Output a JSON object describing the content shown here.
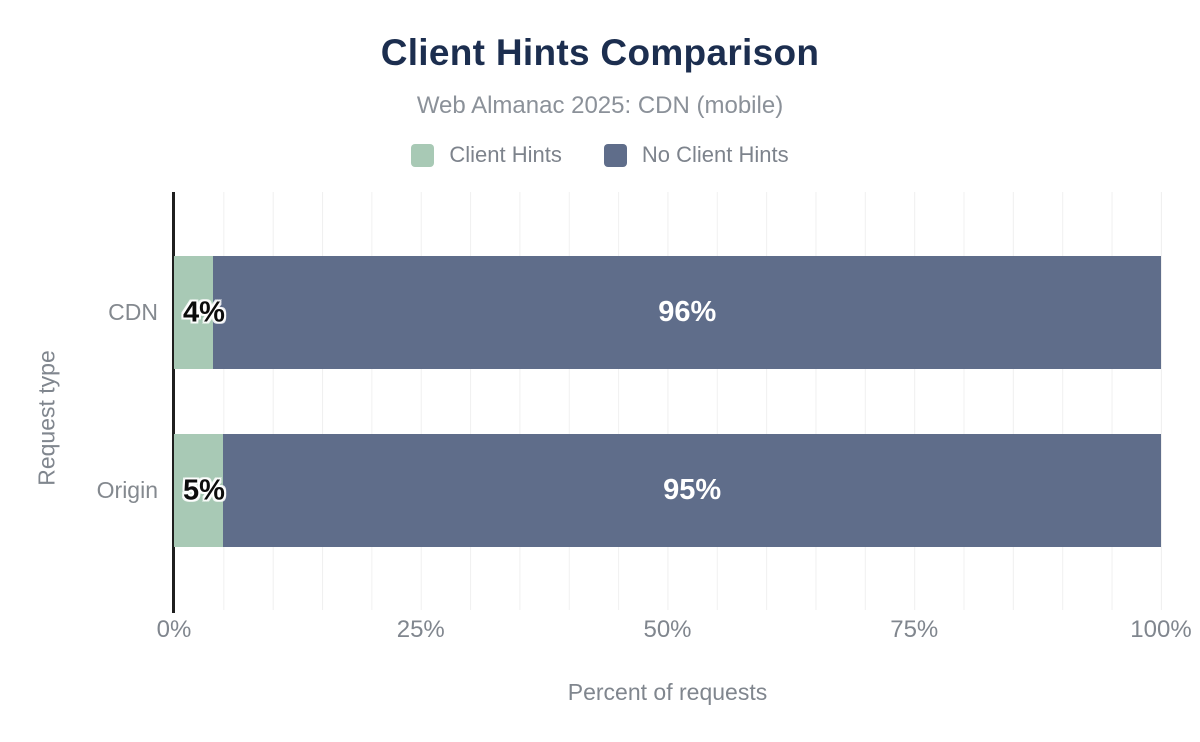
{
  "header": {
    "title": "Client Hints Comparison",
    "subtitle": "Web Almanac 2025: CDN (mobile)"
  },
  "legend": {
    "items": [
      {
        "label": "Client Hints",
        "color": "#a8c9b5"
      },
      {
        "label": "No Client Hints",
        "color": "#5f6d8a"
      }
    ]
  },
  "axes": {
    "x_label": "Percent of requests",
    "y_label": "Request type",
    "x_ticks": [
      "0%",
      "25%",
      "50%",
      "75%",
      "100%"
    ]
  },
  "chart_data": {
    "type": "bar",
    "orientation": "horizontal",
    "stacked": true,
    "title": "Client Hints Comparison",
    "subtitle": "Web Almanac 2025: CDN (mobile)",
    "xlabel": "Percent of requests",
    "ylabel": "Request type",
    "xlim": [
      0,
      100
    ],
    "x_tick_step": 25,
    "grid_step": 5,
    "grid": true,
    "legend_position": "top",
    "categories": [
      "CDN",
      "Origin"
    ],
    "series": [
      {
        "name": "Client Hints",
        "color": "#a8c9b5",
        "values": [
          4,
          5
        ]
      },
      {
        "name": "No Client Hints",
        "color": "#5f6d8a",
        "values": [
          96,
          95
        ]
      }
    ],
    "bar_labels": [
      [
        "4%",
        "96%"
      ],
      [
        "5%",
        "95%"
      ]
    ],
    "colors": {
      "title": "#1c2e4f",
      "subtitle": "#8b9199",
      "axis_text": "#80868e",
      "gridline": "#f0f0f0",
      "axis_line": "#1f1f1f",
      "label_on_light": "#0c0c0c",
      "label_on_dark": "#ffffff"
    }
  }
}
